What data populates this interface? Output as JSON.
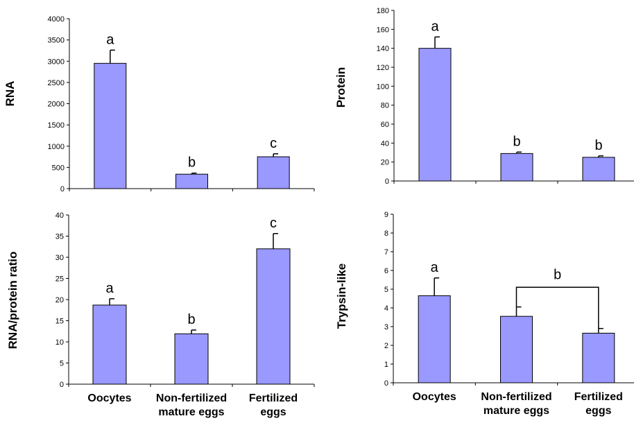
{
  "chart_data": [
    {
      "type": "bar",
      "title": "",
      "xlabel": "",
      "ylabel": "RNA",
      "categories": [
        "Oocytes",
        "Non-fertilized mature eggs",
        "Fertilized eggs"
      ],
      "values": [
        2950,
        340,
        750
      ],
      "errors": [
        310,
        25,
        70
      ],
      "significance": [
        "a",
        "b",
        "c"
      ],
      "ylim": [
        0,
        4000
      ],
      "yticks": [
        "0",
        "500",
        "1000",
        "1500",
        "2000",
        "2500",
        "3000",
        "3500",
        "4000"
      ],
      "category_labels_shown": false
    },
    {
      "type": "bar",
      "title": "",
      "xlabel": "",
      "ylabel": "Protein",
      "categories": [
        "Oocytes",
        "Non-fertilized mature eggs",
        "Fertilized eggs"
      ],
      "values": [
        140,
        29,
        25
      ],
      "errors": [
        12,
        1.5,
        1.5
      ],
      "significance": [
        "a",
        "b",
        "b"
      ],
      "ylim": [
        0,
        180
      ],
      "yticks": [
        "0",
        "20",
        "40",
        "60",
        "80",
        "100",
        "120",
        "140",
        "160",
        "180"
      ],
      "category_labels_shown": false
    },
    {
      "type": "bar",
      "title": "",
      "xlabel": "",
      "ylabel": "RNA/protein ratio",
      "categories": [
        "Oocytes",
        "Non-fertilized mature eggs",
        "Fertilized eggs"
      ],
      "category_lines": [
        [
          "Oocytes"
        ],
        [
          "Non-fertilized",
          "mature eggs"
        ],
        [
          "Fertilized",
          "eggs"
        ]
      ],
      "values": [
        18.7,
        11.9,
        32
      ],
      "errors": [
        1.5,
        0.9,
        3.6
      ],
      "significance": [
        "a",
        "b",
        "c"
      ],
      "ylim": [
        0,
        40
      ],
      "yticks": [
        "0",
        "5",
        "10",
        "15",
        "20",
        "25",
        "30",
        "35",
        "40"
      ],
      "category_labels_shown": true
    },
    {
      "type": "bar",
      "title": "",
      "xlabel": "",
      "ylabel": "Trypsin-like",
      "categories": [
        "Oocytes",
        "Non-fertilized mature eggs",
        "Fertilized eggs"
      ],
      "category_lines": [
        [
          "Oocytes"
        ],
        [
          "Non-fertilized",
          "mature eggs"
        ],
        [
          "Fertilized",
          "eggs"
        ]
      ],
      "values": [
        4.65,
        3.55,
        2.65
      ],
      "errors": [
        0.95,
        0.5,
        0.25
      ],
      "significance": [
        "a",
        "",
        ""
      ],
      "bracket": {
        "from": 1,
        "to": 2,
        "label": "b",
        "y": 5.1
      },
      "ylim": [
        0,
        9
      ],
      "yticks": [
        "0",
        "1",
        "2",
        "3",
        "4",
        "5",
        "6",
        "7",
        "8",
        "9"
      ],
      "category_labels_shown": true
    }
  ]
}
